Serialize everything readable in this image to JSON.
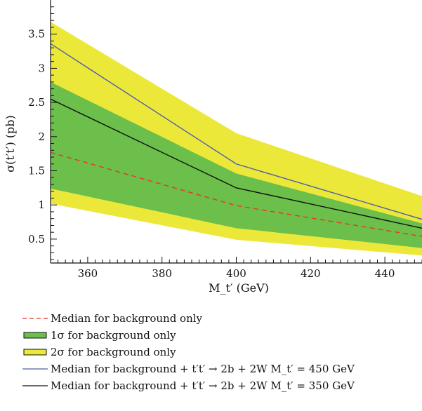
{
  "chart_data": {
    "type": "area",
    "x": [
      350,
      400,
      450
    ],
    "xlabel": "M_t′ (GeV)",
    "ylabel": "σ(t′t′) (pb)",
    "xlim": [
      350,
      450
    ],
    "ylim": [
      0.15,
      4.0
    ],
    "x_ticks": [
      360,
      380,
      400,
      420,
      440
    ],
    "y_ticks": [
      0.5,
      1,
      1.5,
      2,
      2.5,
      3,
      3.5
    ],
    "x_tick_labels": [
      "360",
      "380",
      "400",
      "420",
      "440"
    ],
    "y_tick_labels": [
      "0.5",
      "1",
      "1.5",
      "2",
      "2.5",
      "3",
      "3.5"
    ],
    "grid": false,
    "legend_position": "below",
    "bands": [
      {
        "name": "2σ for background only",
        "color": "#ece83a",
        "lower": [
          1.02,
          0.49,
          0.26
        ],
        "upper": [
          3.68,
          2.05,
          1.13
        ]
      },
      {
        "name": "1σ for background only",
        "color": "#6bbf4a",
        "lower": [
          1.24,
          0.66,
          0.37
        ],
        "upper": [
          2.8,
          1.46,
          0.73
        ]
      }
    ],
    "series": [
      {
        "name": "Median for background only",
        "color": "#e8362e",
        "style": "dashed",
        "values": [
          1.77,
          0.99,
          0.54
        ]
      },
      {
        "name": "Median for background + t′t′ → 2b + 2W M_t′ = 450 GeV",
        "color": "#4f5fa8",
        "style": "solid",
        "values": [
          3.36,
          1.6,
          0.79
        ]
      },
      {
        "name": "Median for background + t′t′ → 2b + 2W M_t′ = 350 GeV",
        "color": "#111111",
        "style": "solid",
        "values": [
          2.55,
          1.25,
          0.66
        ]
      }
    ]
  },
  "legend": {
    "items": [
      {
        "label": "Median for background only",
        "kind": "dashed",
        "color": "#e8362e"
      },
      {
        "label": "1σ for background only",
        "kind": "box",
        "color": "#6bbf4a"
      },
      {
        "label": "2σ for background only",
        "kind": "box",
        "color": "#ece83a"
      },
      {
        "label": "Median for background + t′t′ → 2b + 2W M_t′ = 450 GeV",
        "kind": "line",
        "color": "#4f5fa8"
      },
      {
        "label": "Median for background + t′t′ → 2b + 2W M_t′ = 350 GeV",
        "kind": "line",
        "color": "#111111"
      }
    ]
  }
}
